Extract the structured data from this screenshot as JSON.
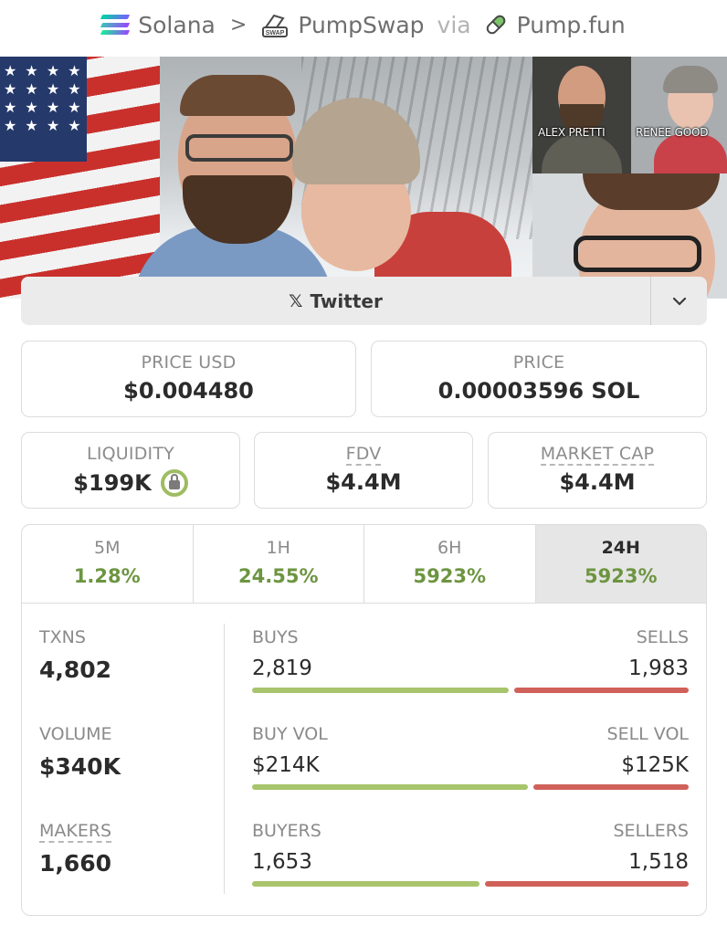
{
  "breadcrumb": {
    "chain": "Solana",
    "dex": "PumpSwap",
    "dex_badge": "SWAP",
    "via": "via",
    "launchpad": "Pump.fun"
  },
  "banner": {
    "tile1_caption": "ALEX PRETTI",
    "tile2_caption": "RENEE GOOD",
    "flag_stars": "★ ★ ★ ★ ★ ★ ★ ★ ★ ★ ★ ★ ★ ★ ★ ★"
  },
  "social": {
    "label": "Twitter",
    "x_glyph": "𝕏"
  },
  "price": {
    "usd_label": "PRICE USD",
    "usd_value": "$0.004480",
    "native_label": "PRICE",
    "native_value": "0.00003596 SOL"
  },
  "metrics": {
    "liquidity_label": "LIQUIDITY",
    "liquidity_value": "$199K",
    "fdv_label": "FDV",
    "fdv_value": "$4.4M",
    "mcap_label": "MARKET CAP",
    "mcap_value": "$4.4M"
  },
  "timeframes": [
    {
      "label": "5M",
      "change": "1.28%"
    },
    {
      "label": "1H",
      "change": "24.55%"
    },
    {
      "label": "6H",
      "change": "5923%"
    },
    {
      "label": "24H",
      "change": "5923%"
    }
  ],
  "stats": {
    "txns_label": "TXNS",
    "txns_value": "4,802",
    "buys_label": "BUYS",
    "buys_value": "2,819",
    "sells_label": "SELLS",
    "sells_value": "1,983",
    "txns_buy_fraction": 0.587,
    "volume_label": "VOLUME",
    "volume_value": "$340K",
    "buy_vol_label": "BUY VOL",
    "buy_vol_value": "$214K",
    "sell_vol_label": "SELL VOL",
    "sell_vol_value": "$125K",
    "volume_buy_fraction": 0.631,
    "makers_label": "MAKERS",
    "makers_value": "1,660",
    "buyers_label": "BUYERS",
    "buyers_value": "1,653",
    "sellers_label": "SELLERS",
    "sellers_value": "1,518",
    "makers_buy_fraction": 0.521
  },
  "colors": {
    "positive": "#6d9541",
    "buy_bar": "#a8c46c",
    "sell_bar": "#d0615a"
  }
}
